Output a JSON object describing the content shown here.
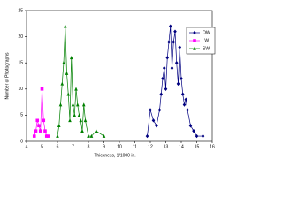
{
  "chart_data": {
    "type": "line",
    "x_label": "Thickness, 1/1000 in.",
    "y_label": "Number of Photographs",
    "xlim": [
      4,
      16
    ],
    "xticks": [
      4,
      5,
      6,
      7,
      8,
      9,
      10,
      11,
      12,
      13,
      14,
      15,
      16
    ],
    "ylim": [
      0,
      25
    ],
    "yticks": [
      0,
      5,
      10,
      15,
      20,
      25
    ],
    "grid": false,
    "legend": "right",
    "series": [
      {
        "name": "OW",
        "color": "#000080",
        "marker": "diamond",
        "x": [
          11.8,
          12.0,
          12.2,
          12.4,
          12.6,
          12.7,
          12.8,
          12.9,
          13.0,
          13.1,
          13.2,
          13.3,
          13.4,
          13.5,
          13.6,
          13.7,
          13.8,
          13.9,
          14.0,
          14.1,
          14.2,
          14.3,
          14.4,
          14.6,
          14.8,
          15.0,
          15.4
        ],
        "values": [
          1,
          6,
          4,
          3,
          6,
          9,
          12,
          14,
          10,
          16,
          19,
          22,
          14,
          19,
          21,
          15,
          11,
          18,
          12,
          9,
          7,
          8,
          6,
          3,
          2,
          1,
          1
        ]
      },
      {
        "name": "LW",
        "color": "#ff00ff",
        "marker": "square",
        "x": [
          4.5,
          4.6,
          4.7,
          4.8,
          4.9,
          5.0,
          5.1,
          5.2,
          5.3,
          5.4
        ],
        "values": [
          1,
          2,
          4,
          3,
          2,
          10,
          4,
          2,
          1,
          1
        ]
      },
      {
        "name": "SW",
        "color": "#008000",
        "marker": "triangle",
        "x": [
          6.0,
          6.1,
          6.2,
          6.3,
          6.4,
          6.5,
          6.6,
          6.7,
          6.8,
          6.9,
          7.0,
          7.1,
          7.2,
          7.3,
          7.4,
          7.5,
          7.6,
          7.7,
          7.8,
          8.0,
          8.2,
          8.5,
          9.0
        ],
        "values": [
          1,
          3,
          7,
          11,
          15,
          22,
          13,
          9,
          4,
          16,
          7,
          5,
          10,
          7,
          5,
          4,
          2,
          7,
          4,
          1,
          1,
          2,
          1
        ]
      }
    ]
  }
}
